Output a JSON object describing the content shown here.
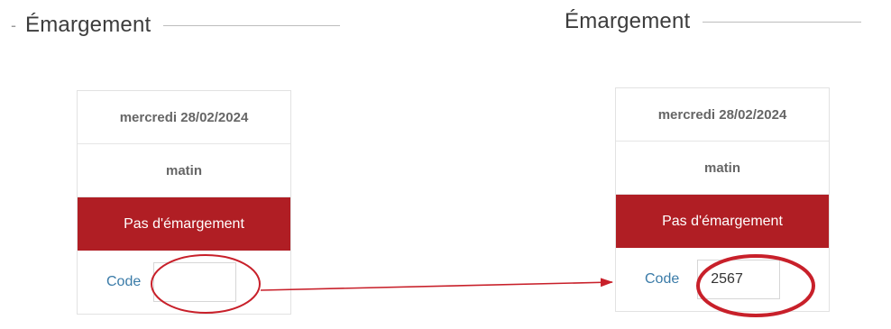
{
  "left_panel": {
    "dash": "-",
    "title": "Émargement",
    "date": "mercredi 28/02/2024",
    "period": "matin",
    "status": "Pas d'émargement",
    "code_label": "Code",
    "code_value": ""
  },
  "right_panel": {
    "title": "Émargement",
    "date": "mercredi 28/02/2024",
    "period": "matin",
    "status": "Pas d'émargement",
    "code_label": "Code",
    "code_value": "2567"
  },
  "colors": {
    "status_bg": "#b01e24",
    "annotation": "#c8202a",
    "code_label": "#3a7ba8"
  }
}
